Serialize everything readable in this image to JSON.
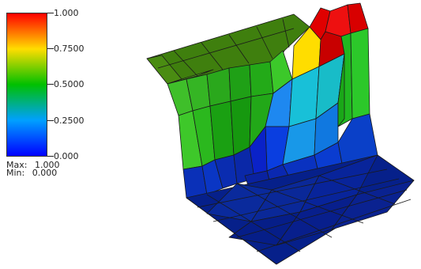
{
  "legend": {
    "ticks": [
      {
        "label": "1.000",
        "value": 1.0
      },
      {
        "label": "0.7500",
        "value": 0.75
      },
      {
        "label": "0.5000",
        "value": 0.5
      },
      {
        "label": "0.2500",
        "value": 0.25
      },
      {
        "label": "0.000",
        "value": 0.0
      }
    ],
    "max_label": "Max:",
    "max_value": "1.000",
    "min_label": "Min:",
    "min_value": "0.000",
    "colormap": [
      "#ff0000",
      "#ffdd00",
      "#00c000",
      "#00a0ff",
      "#0000ff"
    ]
  }
}
